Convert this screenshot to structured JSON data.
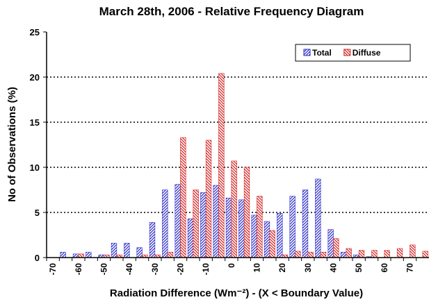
{
  "chart_data": {
    "type": "bar",
    "title": "March 28th, 2006 - Relative Frequency Diagram",
    "x_label": "Radiation Difference (Wm⁻²) - (X < Boundary Value)",
    "y_label": "No of Observations (%)",
    "categories": [
      "-70",
      null,
      "-60",
      null,
      "-50",
      null,
      "-40",
      null,
      "-30",
      null,
      "-20",
      null,
      "-10",
      null,
      "0",
      null,
      "10",
      null,
      "20",
      null,
      "30",
      null,
      "40",
      null,
      "50",
      null,
      "60",
      null,
      "70",
      null
    ],
    "series": [
      {
        "name": "Total",
        "color": "#2b2bc8",
        "values": [
          0,
          0.6,
          0.4,
          0.6,
          0.3,
          1.6,
          1.6,
          1.1,
          3.9,
          7.5,
          8.1,
          4.3,
          7.2,
          8.0,
          6.6,
          6.4,
          4.7,
          4.0,
          4.9,
          6.8,
          7.5,
          8.7,
          3.1,
          0.6,
          0.3,
          0.1,
          0,
          0,
          0,
          0
        ]
      },
      {
        "name": "Diffuse",
        "color": "#d42020",
        "values": [
          0,
          0,
          0.4,
          0,
          0.3,
          0.3,
          0,
          0.3,
          0.3,
          0.6,
          13.3,
          7.5,
          13.0,
          20.4,
          10.7,
          10.0,
          6.8,
          3.0,
          0.3,
          0.7,
          0.6,
          0.6,
          2.1,
          1.0,
          0.8,
          0.8,
          0.8,
          1.0,
          1.4,
          0.7
        ]
      }
    ],
    "ylim": [
      0,
      25
    ],
    "yticks": [
      0,
      5,
      10,
      15,
      20,
      25
    ],
    "grid": true,
    "legend": "top-right"
  }
}
